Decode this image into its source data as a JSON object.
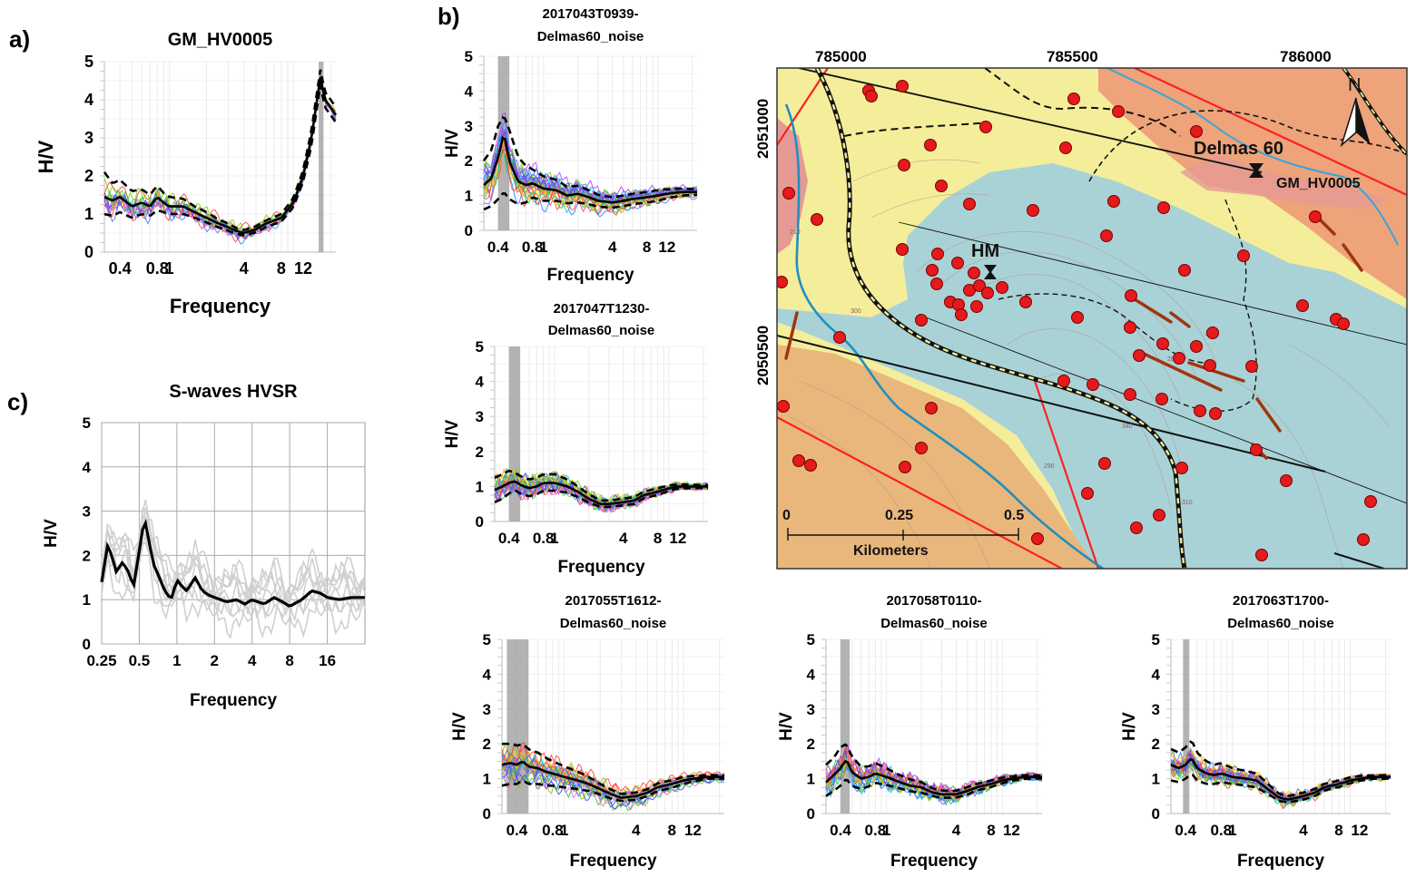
{
  "figure": {
    "panel_a": "a)",
    "panel_b": "b)",
    "panel_c": "c)"
  },
  "colors": {
    "curve_palette": [
      "#ff3b3b",
      "#2e7dff",
      "#27c24c",
      "#b23bff",
      "#ffa000",
      "#00c8c8",
      "#ff5fd0",
      "#7bd000",
      "#3a3aff",
      "#ffd400"
    ],
    "mean": "#000000",
    "std": "#000000",
    "peak_band": "#8c8c8c",
    "light_curves": "#cfcfcf",
    "map_yellow": "#f4ee9a",
    "map_blue": "#a9d2d6",
    "map_orange_bottom": "#e9b77c",
    "map_orange_top": "#eea37a",
    "map_pink": "#e59a95",
    "station": "#e41a1c",
    "river": "#1f8fc2",
    "fault": "#ff2020",
    "lineament": "#a0350f"
  },
  "map": {
    "x_ticks": [
      "785000",
      "785500",
      "786000"
    ],
    "y_ticks": [
      "2051000",
      "2050500"
    ],
    "north_label": "N",
    "site_label": "Delmas 60",
    "station_label": "GM_HV0005",
    "hm_label": "HM",
    "scale_ticks": [
      "0",
      "0.25",
      "0.5"
    ],
    "scale_unit": "Kilometers",
    "contour_labels": [
      "210",
      "300",
      "280",
      "260",
      "340",
      "290",
      "310"
    ]
  },
  "chart_data": [
    {
      "id": "a",
      "type": "line",
      "title": "GM_HV0005",
      "xlabel": "Frequency",
      "ylabel": "H/V",
      "x_scale": "log",
      "xlim": [
        0.3,
        22
      ],
      "ylim": [
        0,
        5
      ],
      "x_ticks": [
        0.4,
        0.8,
        1,
        4,
        8,
        12
      ],
      "x_tick_labels": [
        "0.4",
        "0.8",
        "1",
        "4",
        "8",
        "12"
      ],
      "y_ticks": [
        0,
        1,
        2,
        3,
        4,
        5
      ],
      "y_tick_labels": [
        "0",
        "1",
        "2",
        "3",
        "4",
        "5"
      ],
      "peak_band": [
        16.0,
        17.5
      ],
      "n_curves": 14,
      "spread": 0.45,
      "x": [
        0.3,
        0.35,
        0.4,
        0.5,
        0.6,
        0.7,
        0.8,
        0.9,
        1.0,
        1.3,
        1.6,
        2.0,
        2.5,
        3.0,
        3.5,
        4.0,
        5.0,
        6.0,
        8.0,
        10.0,
        12.0,
        14.0,
        16.5,
        18.0,
        20.0,
        22.0
      ],
      "mean": [
        1.45,
        1.35,
        1.45,
        1.2,
        1.3,
        1.2,
        1.45,
        1.3,
        1.2,
        1.2,
        1.05,
        0.9,
        0.75,
        0.65,
        0.55,
        0.5,
        0.6,
        0.75,
        0.9,
        1.3,
        2.0,
        3.0,
        4.6,
        4.0,
        3.8,
        3.6
      ],
      "std_upper": [
        2.1,
        1.8,
        1.9,
        1.6,
        1.65,
        1.5,
        1.75,
        1.55,
        1.45,
        1.4,
        1.2,
        1.05,
        0.85,
        0.75,
        0.62,
        0.58,
        0.68,
        0.83,
        1.0,
        1.42,
        2.15,
        3.2,
        4.8,
        4.2,
        4.0,
        3.8
      ],
      "std_lower": [
        1.0,
        0.95,
        1.05,
        0.9,
        1.0,
        0.95,
        1.1,
        1.05,
        1.0,
        1.0,
        0.9,
        0.78,
        0.65,
        0.56,
        0.48,
        0.44,
        0.52,
        0.66,
        0.8,
        1.18,
        1.85,
        2.8,
        4.4,
        3.8,
        3.6,
        3.4
      ]
    },
    {
      "id": "b1",
      "type": "line",
      "title": [
        "2017043T0939-",
        "Delmas60_noise"
      ],
      "xlabel": "Frequency",
      "ylabel": "H/V",
      "x_scale": "log",
      "xlim": [
        0.3,
        22
      ],
      "ylim": [
        0,
        5
      ],
      "x_ticks": [
        0.4,
        0.8,
        1,
        4,
        8,
        12
      ],
      "x_tick_labels": [
        "0.4",
        "0.8",
        "1",
        "4",
        "8",
        "12"
      ],
      "y_ticks": [
        0,
        1,
        2,
        3,
        4,
        5
      ],
      "y_tick_labels": [
        "0",
        "1",
        "2",
        "3",
        "4",
        "5"
      ],
      "peak_band": [
        0.4,
        0.5
      ],
      "n_curves": 24,
      "spread": 0.8,
      "x": [
        0.3,
        0.35,
        0.4,
        0.45,
        0.5,
        0.6,
        0.7,
        0.8,
        1.0,
        1.3,
        1.6,
        2.0,
        2.5,
        3.0,
        4.0,
        5.0,
        6.0,
        8.0,
        10.0,
        12.0,
        16.0,
        22.0
      ],
      "mean": [
        1.3,
        1.5,
        2.1,
        2.8,
        2.0,
        1.4,
        1.3,
        1.35,
        1.2,
        1.15,
        1.0,
        1.05,
        0.95,
        0.85,
        0.8,
        0.85,
        0.9,
        0.95,
        1.0,
        1.05,
        1.1,
        1.1
      ],
      "std_upper": [
        2.0,
        2.3,
        3.0,
        3.3,
        2.9,
        2.1,
        1.85,
        1.75,
        1.55,
        1.45,
        1.25,
        1.28,
        1.15,
        1.02,
        0.95,
        1.0,
        1.05,
        1.1,
        1.15,
        1.18,
        1.2,
        1.18
      ],
      "std_lower": [
        0.6,
        0.7,
        0.9,
        1.1,
        0.9,
        0.75,
        0.8,
        0.95,
        0.85,
        0.85,
        0.78,
        0.8,
        0.75,
        0.68,
        0.65,
        0.7,
        0.75,
        0.8,
        0.85,
        0.92,
        1.0,
        1.02
      ]
    },
    {
      "id": "b2",
      "type": "line",
      "title": [
        "2017047T1230-",
        "Delmas60_noise"
      ],
      "xlabel": "Frequency",
      "ylabel": "H/V",
      "x_scale": "log",
      "xlim": [
        0.3,
        22
      ],
      "ylim": [
        0,
        5
      ],
      "x_ticks": [
        0.4,
        0.8,
        1,
        4,
        8,
        12
      ],
      "x_tick_labels": [
        "0.4",
        "0.8",
        "1",
        "4",
        "8",
        "12"
      ],
      "y_ticks": [
        0,
        1,
        2,
        3,
        4,
        5
      ],
      "y_tick_labels": [
        "0",
        "1",
        "2",
        "3",
        "4",
        "5"
      ],
      "peak_band": [
        0.4,
        0.5
      ],
      "n_curves": 22,
      "spread": 0.35,
      "x": [
        0.3,
        0.35,
        0.4,
        0.45,
        0.5,
        0.6,
        0.7,
        0.8,
        1.0,
        1.3,
        1.6,
        2.0,
        2.5,
        3.0,
        4.0,
        5.0,
        6.0,
        8.0,
        10.0,
        12.0,
        16.0,
        22.0
      ],
      "mean": [
        0.9,
        1.0,
        1.1,
        1.15,
        1.05,
        0.95,
        1.0,
        1.1,
        1.1,
        1.0,
        0.85,
        0.65,
        0.5,
        0.5,
        0.55,
        0.6,
        0.75,
        0.85,
        0.95,
        1.0,
        1.0,
        1.0
      ],
      "std_upper": [
        1.25,
        1.35,
        1.45,
        1.4,
        1.3,
        1.2,
        1.25,
        1.35,
        1.35,
        1.2,
        1.0,
        0.78,
        0.6,
        0.6,
        0.65,
        0.7,
        0.85,
        0.95,
        1.03,
        1.06,
        1.05,
        1.04
      ],
      "std_lower": [
        0.55,
        0.65,
        0.8,
        0.9,
        0.8,
        0.72,
        0.78,
        0.88,
        0.88,
        0.82,
        0.7,
        0.54,
        0.42,
        0.42,
        0.46,
        0.5,
        0.66,
        0.76,
        0.87,
        0.94,
        0.95,
        0.96
      ]
    },
    {
      "id": "b3",
      "type": "line",
      "title": [
        "2017055T1612-",
        "Delmas60_noise"
      ],
      "xlabel": "Frequency",
      "ylabel": "H/V",
      "x_scale": "log",
      "xlim": [
        0.3,
        22
      ],
      "ylim": [
        0,
        5
      ],
      "x_ticks": [
        0.4,
        0.8,
        1,
        4,
        8,
        12
      ],
      "x_tick_labels": [
        "0.4",
        "0.8",
        "1",
        "4",
        "8",
        "12"
      ],
      "y_ticks": [
        0,
        1,
        2,
        3,
        4,
        5
      ],
      "y_tick_labels": [
        "0",
        "1",
        "2",
        "3",
        "4",
        "5"
      ],
      "peak_band": [
        0.33,
        0.5
      ],
      "n_curves": 24,
      "spread": 0.6,
      "x": [
        0.3,
        0.35,
        0.4,
        0.45,
        0.5,
        0.6,
        0.7,
        0.8,
        1.0,
        1.3,
        1.6,
        2.0,
        2.5,
        3.0,
        4.0,
        5.0,
        6.0,
        8.0,
        10.0,
        12.0,
        16.0,
        22.0
      ],
      "mean": [
        1.4,
        1.45,
        1.4,
        1.5,
        1.35,
        1.3,
        1.2,
        1.15,
        1.05,
        0.95,
        0.85,
        0.7,
        0.55,
        0.45,
        0.5,
        0.6,
        0.75,
        0.85,
        0.95,
        1.0,
        1.05,
        1.05
      ],
      "std_upper": [
        2.0,
        2.0,
        1.95,
        2.0,
        1.85,
        1.75,
        1.6,
        1.5,
        1.35,
        1.2,
        1.05,
        0.85,
        0.68,
        0.56,
        0.6,
        0.7,
        0.86,
        0.96,
        1.05,
        1.08,
        1.1,
        1.1
      ],
      "std_lower": [
        0.8,
        0.85,
        0.85,
        0.95,
        0.85,
        0.85,
        0.8,
        0.8,
        0.75,
        0.7,
        0.65,
        0.55,
        0.42,
        0.36,
        0.4,
        0.5,
        0.64,
        0.74,
        0.85,
        0.92,
        1.0,
        1.0
      ]
    },
    {
      "id": "b4",
      "type": "line",
      "title": [
        "2017058T0110-",
        "Delmas60_noise"
      ],
      "xlabel": "Frequency",
      "ylabel": "H/V",
      "x_scale": "log",
      "xlim": [
        0.3,
        22
      ],
      "ylim": [
        0,
        5
      ],
      "x_ticks": [
        0.4,
        0.8,
        1,
        4,
        8,
        12
      ],
      "x_tick_labels": [
        "0.4",
        "0.8",
        "1",
        "4",
        "8",
        "12"
      ],
      "y_ticks": [
        0,
        1,
        2,
        3,
        4,
        5
      ],
      "y_tick_labels": [
        "0",
        "1",
        "2",
        "3",
        "4",
        "5"
      ],
      "peak_band": [
        0.4,
        0.48
      ],
      "n_curves": 22,
      "spread": 0.4,
      "x": [
        0.3,
        0.35,
        0.4,
        0.45,
        0.5,
        0.6,
        0.7,
        0.8,
        1.0,
        1.3,
        1.6,
        2.0,
        2.5,
        3.0,
        4.0,
        5.0,
        6.0,
        8.0,
        10.0,
        12.0,
        16.0,
        22.0
      ],
      "mean": [
        0.9,
        1.1,
        1.3,
        1.55,
        1.2,
        1.0,
        1.05,
        1.15,
        1.05,
        0.9,
        0.8,
        0.75,
        0.6,
        0.55,
        0.55,
        0.65,
        0.75,
        0.85,
        0.95,
        1.0,
        1.05,
        1.05
      ],
      "std_upper": [
        1.4,
        1.6,
        1.9,
        2.0,
        1.65,
        1.35,
        1.35,
        1.45,
        1.3,
        1.1,
        0.98,
        0.9,
        0.72,
        0.66,
        0.65,
        0.76,
        0.85,
        0.95,
        1.03,
        1.07,
        1.1,
        1.1
      ],
      "std_lower": [
        0.5,
        0.65,
        0.8,
        1.0,
        0.8,
        0.7,
        0.78,
        0.88,
        0.82,
        0.72,
        0.64,
        0.6,
        0.5,
        0.45,
        0.46,
        0.55,
        0.66,
        0.76,
        0.87,
        0.94,
        1.0,
        1.0
      ]
    },
    {
      "id": "b5",
      "type": "line",
      "title": [
        "2017063T1700-",
        "Delmas60_noise"
      ],
      "xlabel": "Frequency",
      "ylabel": "H/V",
      "x_scale": "log",
      "xlim": [
        0.3,
        22
      ],
      "ylim": [
        0,
        5
      ],
      "x_ticks": [
        0.4,
        0.8,
        1,
        4,
        8,
        12
      ],
      "x_tick_labels": [
        "0.4",
        "0.8",
        "1",
        "4",
        "8",
        "12"
      ],
      "y_ticks": [
        0,
        1,
        2,
        3,
        4,
        5
      ],
      "y_tick_labels": [
        "0",
        "1",
        "2",
        "3",
        "4",
        "5"
      ],
      "peak_band": [
        0.38,
        0.43
      ],
      "n_curves": 22,
      "spread": 0.4,
      "x": [
        0.3,
        0.35,
        0.4,
        0.45,
        0.5,
        0.6,
        0.7,
        0.8,
        1.0,
        1.3,
        1.6,
        2.0,
        2.5,
        3.0,
        4.0,
        5.0,
        6.0,
        8.0,
        10.0,
        12.0,
        16.0,
        22.0
      ],
      "mean": [
        1.4,
        1.3,
        1.4,
        1.6,
        1.3,
        1.15,
        1.1,
        1.15,
        1.05,
        1.0,
        0.95,
        0.7,
        0.45,
        0.4,
        0.5,
        0.6,
        0.75,
        0.85,
        0.95,
        1.0,
        1.05,
        1.05
      ],
      "std_upper": [
        1.85,
        1.75,
        1.9,
        2.1,
        1.75,
        1.5,
        1.4,
        1.45,
        1.3,
        1.22,
        1.15,
        0.85,
        0.56,
        0.5,
        0.6,
        0.7,
        0.85,
        0.95,
        1.04,
        1.08,
        1.1,
        1.1
      ],
      "std_lower": [
        0.95,
        0.9,
        1.0,
        1.15,
        0.95,
        0.85,
        0.85,
        0.9,
        0.85,
        0.8,
        0.75,
        0.56,
        0.36,
        0.32,
        0.4,
        0.5,
        0.66,
        0.76,
        0.87,
        0.94,
        1.0,
        1.0
      ]
    },
    {
      "id": "c",
      "type": "line",
      "title": "S-waves HVSR",
      "xlabel": "Frequency",
      "ylabel": "H/V",
      "x_scale": "log",
      "xlim": [
        0.25,
        32
      ],
      "ylim": [
        0,
        5
      ],
      "x_ticks": [
        0.25,
        0.5,
        1,
        2,
        4,
        8,
        16
      ],
      "x_tick_labels": [
        "0.25",
        "0.5",
        "1",
        "2",
        "4",
        "8",
        "16"
      ],
      "y_ticks": [
        0,
        1,
        2,
        3,
        4,
        5
      ],
      "y_tick_labels": [
        "0",
        "1",
        "2",
        "3",
        "4",
        "5"
      ],
      "grid": true,
      "n_curves": 8,
      "spread": 0.9,
      "x": [
        0.25,
        0.28,
        0.3,
        0.33,
        0.36,
        0.4,
        0.45,
        0.5,
        0.55,
        0.6,
        0.65,
        0.7,
        0.8,
        0.9,
        1.0,
        1.1,
        1.2,
        1.4,
        1.6,
        1.8,
        2.0,
        2.5,
        3.0,
        3.5,
        4.0,
        5.0,
        6.0,
        7.0,
        8.0,
        10.0,
        12.0,
        14.0,
        16.0,
        20.0,
        25.0,
        32.0
      ],
      "mean": [
        1.4,
        2.25,
        2.0,
        1.6,
        1.85,
        1.7,
        1.3,
        2.1,
        2.85,
        2.3,
        1.8,
        1.6,
        1.2,
        1.0,
        1.45,
        1.3,
        1.2,
        1.5,
        1.2,
        1.1,
        1.05,
        0.95,
        1.0,
        0.9,
        1.0,
        0.9,
        1.05,
        0.95,
        0.85,
        1.0,
        1.2,
        1.15,
        1.05,
        1.0,
        1.05,
        1.05
      ]
    }
  ]
}
